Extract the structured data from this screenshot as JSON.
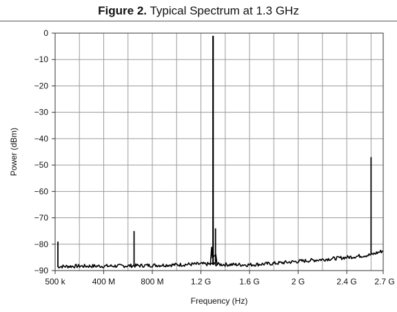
{
  "figure": {
    "label": "Figure 2.",
    "caption": "Typical Spectrum at 1.3 GHz"
  },
  "chart_data": {
    "type": "line",
    "title": "Figure 2. Typical Spectrum at 1.3 GHz",
    "xlabel": "Frequency (Hz)",
    "ylabel": "Power (dBm)",
    "xlim": [
      500000,
      2700000000
    ],
    "ylim": [
      -90,
      0
    ],
    "x_tick_values": [
      500000,
      400000000,
      800000000,
      1200000000,
      1600000000,
      2000000000,
      2400000000,
      2700000000
    ],
    "x_tick_labels": [
      "500 k",
      "400 M",
      "800 M",
      "1.2 G",
      "1.6 G",
      "2 G",
      "2.4 G",
      "2.7 G"
    ],
    "y_tick_values": [
      0,
      -10,
      -20,
      -30,
      -40,
      -50,
      -60,
      -70,
      -80,
      -90
    ],
    "y_tick_labels": [
      "0",
      "−10",
      "−20",
      "−30",
      "−40",
      "−50",
      "−60",
      "−70",
      "−80",
      "−90"
    ],
    "grid": true,
    "legend": "none",
    "color": "#000000",
    "noise_floor": {
      "x": [
        500000,
        200000000,
        400000000,
        600000000,
        800000000,
        1000000000,
        1200000000,
        1400000000,
        1600000000,
        1800000000,
        2000000000,
        2200000000,
        2400000000,
        2600000000,
        2700000000
      ],
      "y": [
        -88.5,
        -88.3,
        -88.3,
        -88.2,
        -88.0,
        -87.8,
        -87.5,
        -87.7,
        -87.8,
        -87.3,
        -86.5,
        -85.8,
        -85.0,
        -84.0,
        -82.5
      ]
    },
    "peaks": [
      {
        "x": 8000000,
        "y": -79
      },
      {
        "x": 650000000,
        "y": -75
      },
      {
        "x": 1300000000,
        "y": -1
      },
      {
        "x": 1320000000,
        "y": -74
      },
      {
        "x": 2600000000,
        "y": -47
      }
    ]
  }
}
